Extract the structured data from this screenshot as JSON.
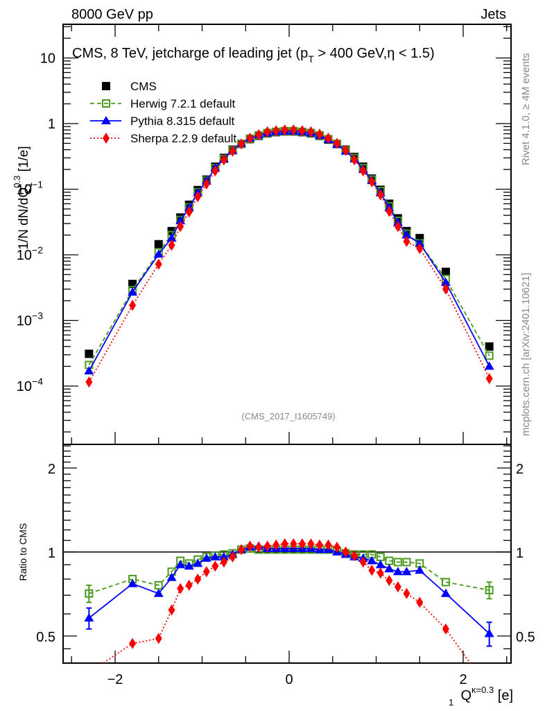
{
  "header": {
    "left_label": "8000 GeV pp",
    "right_label": "Jets"
  },
  "side_labels": {
    "rivet": "Rivet 4.1.0, ≥ 4M events",
    "mcplots": "mcplots.cern.ch [arXiv:2401.10621]"
  },
  "analysis_id": "(CMS_2017_I1605749)",
  "chart_data": [
    {
      "type": "scatter",
      "panel": "main",
      "title": "CMS, 8 TeV, jetcharge of leading jet (p_T > 400 GeV, η < 1.5)",
      "title_parts": {
        "pre": "CMS, 8 TeV, jetcharge of leading jet (p",
        "sub": "T",
        "post": " > 400 GeV,η < 1.5)"
      },
      "ylabel": "1/N dN/dQ_1^0.3 [1/e]",
      "ylabel_parts": {
        "pre": "1/N dN/dQ",
        "sub": "1",
        "sup": "0.3",
        "post": " [1/e]"
      },
      "yscale": "log",
      "ylim": [
        1.4e-05,
        32
      ],
      "xlim": [
        -2.6,
        2.55
      ],
      "yticks": [
        {
          "value": 10,
          "label": "10"
        },
        {
          "value": 1,
          "label": "1"
        },
        {
          "value": 0.1,
          "label": "10",
          "exp": "−1"
        },
        {
          "value": 0.01,
          "label": "10",
          "exp": "−2"
        },
        {
          "value": 0.001,
          "label": "10",
          "exp": "−3"
        },
        {
          "value": 0.0001,
          "label": "10",
          "exp": "−4"
        }
      ],
      "legend_position": "top-left",
      "x": [
        -2.3,
        -1.8,
        -1.5,
        -1.35,
        -1.25,
        -1.15,
        -1.05,
        -0.95,
        -0.85,
        -0.75,
        -0.65,
        -0.55,
        -0.45,
        -0.35,
        -0.25,
        -0.15,
        -0.05,
        0.05,
        0.15,
        0.25,
        0.35,
        0.45,
        0.55,
        0.65,
        0.75,
        0.85,
        0.95,
        1.05,
        1.15,
        1.25,
        1.35,
        1.5,
        1.8,
        2.3
      ],
      "series": [
        {
          "name": "CMS",
          "color": "#000000",
          "marker": "filled-square",
          "line": "none",
          "values": [
            0.00031,
            0.0036,
            0.0145,
            0.023,
            0.037,
            0.058,
            0.097,
            0.14,
            0.22,
            0.3,
            0.4,
            0.49,
            0.58,
            0.65,
            0.71,
            0.74,
            0.76,
            0.76,
            0.74,
            0.71,
            0.65,
            0.57,
            0.49,
            0.4,
            0.31,
            0.22,
            0.145,
            0.098,
            0.06,
            0.036,
            0.023,
            0.018,
            0.0055,
            0.0004
          ]
        },
        {
          "name": "Herwig 7.2.1 default",
          "color": "#4a9a1e",
          "marker": "open-square",
          "line": "dashed",
          "values": [
            0.00021,
            0.0029,
            0.011,
            0.02,
            0.034,
            0.053,
            0.09,
            0.135,
            0.21,
            0.29,
            0.39,
            0.49,
            0.59,
            0.66,
            0.72,
            0.75,
            0.77,
            0.77,
            0.75,
            0.72,
            0.66,
            0.58,
            0.49,
            0.39,
            0.3,
            0.21,
            0.14,
            0.094,
            0.055,
            0.033,
            0.021,
            0.015,
            0.0043,
            0.00029
          ]
        },
        {
          "name": "Pythia 8.315 default",
          "color": "#0000ff",
          "marker": "filled-triangle",
          "line": "solid",
          "values": [
            0.00017,
            0.0027,
            0.0102,
            0.018,
            0.033,
            0.052,
            0.088,
            0.133,
            0.21,
            0.29,
            0.39,
            0.5,
            0.6,
            0.67,
            0.72,
            0.75,
            0.77,
            0.77,
            0.75,
            0.72,
            0.66,
            0.57,
            0.48,
            0.38,
            0.29,
            0.2,
            0.135,
            0.088,
            0.052,
            0.031,
            0.02,
            0.015,
            0.0038,
            0.0002
          ]
        },
        {
          "name": "Sherpa 2.2.9 default",
          "color": "#ff0000",
          "marker": "filled-diamond",
          "line": "dotted",
          "values": [
            0.000115,
            0.0017,
            0.0072,
            0.014,
            0.027,
            0.045,
            0.077,
            0.12,
            0.19,
            0.28,
            0.38,
            0.49,
            0.6,
            0.68,
            0.75,
            0.78,
            0.8,
            0.8,
            0.78,
            0.75,
            0.69,
            0.6,
            0.5,
            0.39,
            0.28,
            0.19,
            0.13,
            0.082,
            0.046,
            0.027,
            0.016,
            0.0125,
            0.003,
            0.00013
          ]
        }
      ]
    },
    {
      "type": "scatter",
      "panel": "ratio",
      "ylabel": "Ratio to CMS",
      "xlabel": "Q_1^{κ=0.3} [e]",
      "xlabel_parts": {
        "pre": "Q",
        "sub": "1",
        "sup": "κ=0.3",
        "post": " [e]"
      },
      "yscale": "log",
      "ylim": [
        0.4,
        2.5
      ],
      "xlim": [
        -2.6,
        2.55
      ],
      "yticks": [
        {
          "value": 2,
          "label": "2"
        },
        {
          "value": 1,
          "label": "1"
        },
        {
          "value": 0.5,
          "label": "0.5"
        }
      ],
      "xticks": [
        {
          "value": -2,
          "label": "−2"
        },
        {
          "value": 0,
          "label": "0"
        },
        {
          "value": 2,
          "label": "2"
        }
      ],
      "reference_line": 1,
      "x": [
        -2.3,
        -1.8,
        -1.5,
        -1.35,
        -1.25,
        -1.15,
        -1.05,
        -0.95,
        -0.85,
        -0.75,
        -0.65,
        -0.55,
        -0.45,
        -0.35,
        -0.25,
        -0.15,
        -0.05,
        0.05,
        0.15,
        0.25,
        0.35,
        0.45,
        0.55,
        0.65,
        0.75,
        0.85,
        0.95,
        1.05,
        1.15,
        1.25,
        1.35,
        1.5,
        1.8,
        2.3
      ],
      "series": [
        {
          "name": "Herwig 7.2.1 default",
          "color": "#4a9a1e",
          "marker": "open-square",
          "line": "dashed",
          "values": [
            0.71,
            0.8,
            0.76,
            0.85,
            0.93,
            0.91,
            0.94,
            0.96,
            0.97,
            0.98,
            0.99,
            1.02,
            1.03,
            1.02,
            1.02,
            1.02,
            1.02,
            1.02,
            1.02,
            1.02,
            1.02,
            1.02,
            1.01,
            0.99,
            0.98,
            0.98,
            0.98,
            0.96,
            0.93,
            0.92,
            0.92,
            0.91,
            0.78,
            0.73
          ],
          "errors": {
            "0": 0.05,
            "33": 0.05
          }
        },
        {
          "name": "Pythia 8.315 default",
          "color": "#0000ff",
          "marker": "filled-triangle",
          "line": "solid",
          "values": [
            0.58,
            0.77,
            0.71,
            0.81,
            0.9,
            0.89,
            0.91,
            0.95,
            0.96,
            0.96,
            0.98,
            1.02,
            1.04,
            1.05,
            1.03,
            1.03,
            1.03,
            1.03,
            1.03,
            1.03,
            1.02,
            1.02,
            1.0,
            0.98,
            0.96,
            0.95,
            0.93,
            0.9,
            0.87,
            0.85,
            0.85,
            0.86,
            0.71,
            0.51
          ],
          "errors": {
            "0": 0.05,
            "33": 0.05
          }
        },
        {
          "name": "Sherpa 2.2.9 default",
          "color": "#ff0000",
          "marker": "filled-diamond",
          "line": "dotted",
          "values": [
            0.37,
            0.47,
            0.49,
            0.62,
            0.74,
            0.76,
            0.8,
            0.85,
            0.89,
            0.92,
            0.96,
            1.02,
            1.05,
            1.04,
            1.05,
            1.06,
            1.07,
            1.07,
            1.07,
            1.07,
            1.06,
            1.06,
            1.04,
            1.0,
            0.97,
            0.92,
            0.86,
            0.84,
            0.79,
            0.75,
            0.71,
            0.66,
            0.53,
            0.32
          ]
        }
      ]
    }
  ]
}
